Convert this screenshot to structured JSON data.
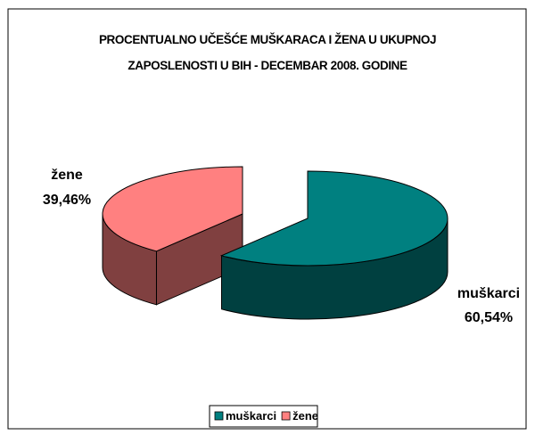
{
  "chart_data": {
    "type": "pie3d",
    "title": "PROCENTUALNO UČEŠĆE MUŠKARACA I ŽENA U UKUPNOJ ZAPOSLENOSTI U BIH - DECEMBAR 2008. GODINE",
    "categories": [
      "muškarci",
      "žene"
    ],
    "values": [
      60.54,
      39.46
    ],
    "value_labels": [
      "60,54%",
      "39,46%"
    ],
    "colors": [
      "#008080",
      "#ff8080"
    ],
    "legend": "bottom"
  }
}
